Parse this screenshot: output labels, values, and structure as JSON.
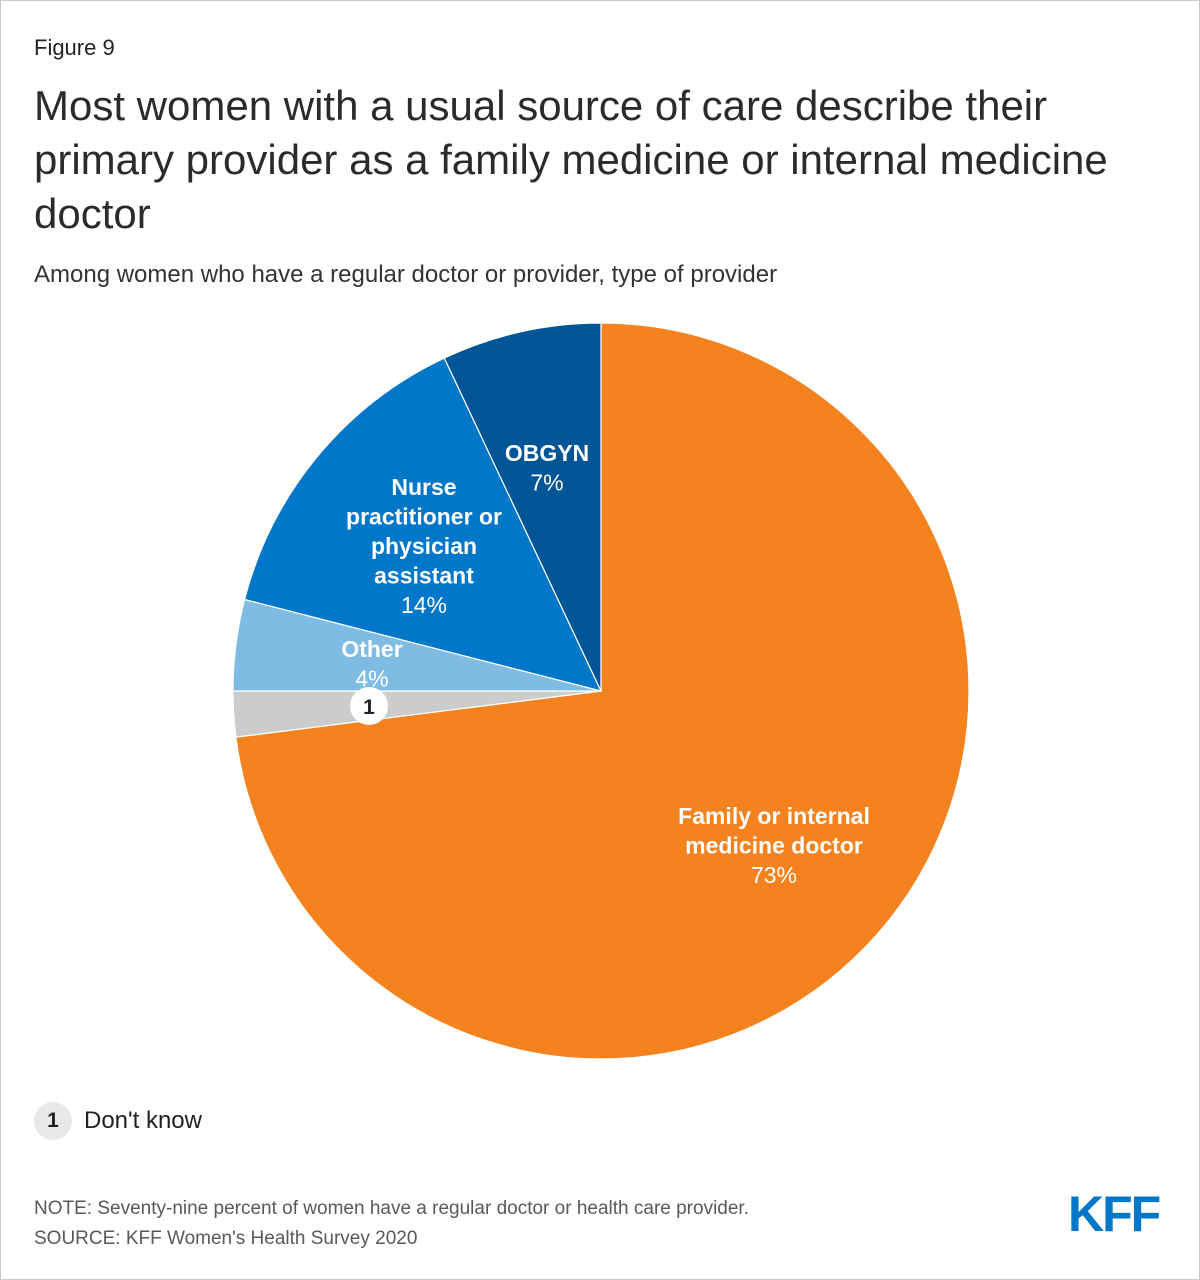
{
  "figure_label": "Figure 9",
  "title": "Most women with a usual source of care describe their primary provider as a family medicine or internal medicine doctor",
  "subtitle": "Among women who have a regular doctor or provider, type of provider",
  "chart_data": {
    "type": "pie",
    "title": "Most women with a usual source of care describe their primary provider as a family medicine or internal medicine doctor",
    "subtitle": "Among women who have a regular doctor or provider, type of provider",
    "start": "12 o'clock, clockwise",
    "slices": [
      {
        "key": "family",
        "label": "Family or internal medicine doctor",
        "value": 73,
        "display": "73%",
        "color": "#f4821f"
      },
      {
        "key": "dontknow",
        "label": "Don't know",
        "value": 2,
        "display": "1",
        "color": "#cccccc",
        "marker": "1"
      },
      {
        "key": "other",
        "label": "Other",
        "value": 4,
        "display": "4%",
        "color": "#7fbbe3"
      },
      {
        "key": "np",
        "label": "Nurse practitioner or physician assistant",
        "value": 14,
        "display": "14%",
        "color": "#0077c8"
      },
      {
        "key": "obgyn",
        "label": "OBGYN",
        "value": 7,
        "display": "7%",
        "color": "#005596"
      }
    ],
    "slice_label_lines": {
      "family": [
        "Family or internal",
        "medicine doctor"
      ],
      "other": [
        "Other"
      ],
      "np": [
        "Nurse",
        "practitioner or",
        "physician",
        "assistant"
      ],
      "obgyn": [
        "OBGYN"
      ]
    }
  },
  "legend": {
    "marker": "1",
    "text": "Don't know"
  },
  "note": "NOTE: Seventy-nine percent of women have a regular doctor or health care provider.",
  "source": "SOURCE: KFF Women's Health Survey 2020",
  "logo": "KFF"
}
